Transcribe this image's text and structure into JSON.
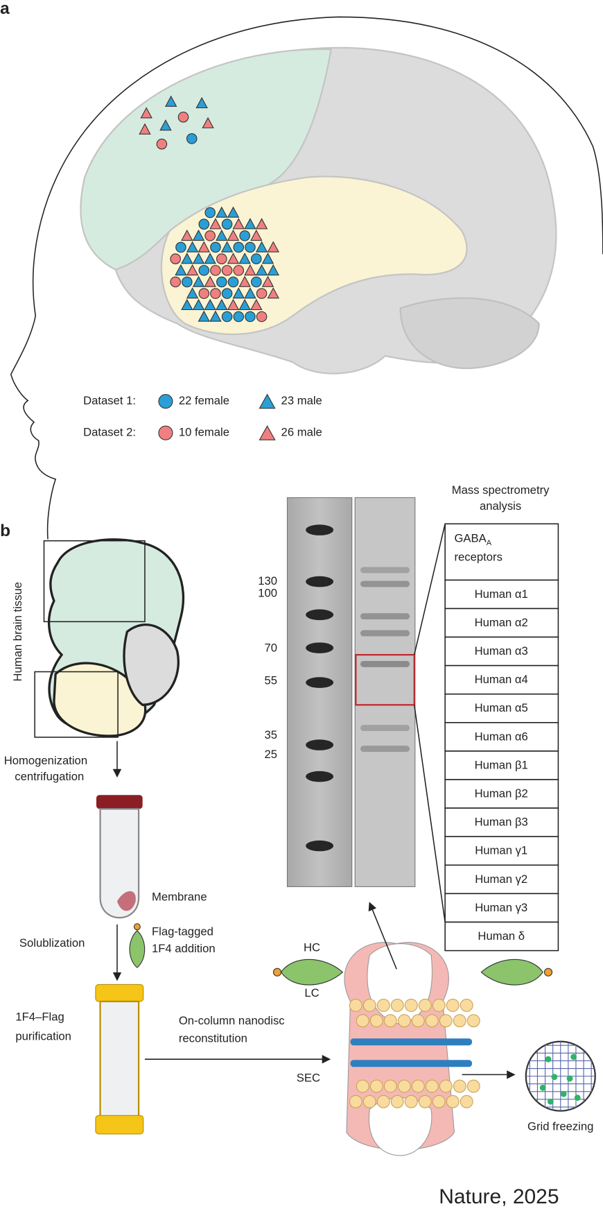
{
  "panel_labels": [
    "a",
    "b"
  ],
  "legend": [
    {
      "dataset": "Dataset 1:",
      "female": "22 female",
      "male": "23 male"
    },
    {
      "dataset": "Dataset 2:",
      "female": "10 female",
      "male": "26 male"
    }
  ],
  "workflow": {
    "tissue": "Human brain tissue",
    "step1": [
      "Homogenization",
      "centrifugation"
    ],
    "membrane": "Membrane",
    "solubilization": "Solublization",
    "antibody": [
      "Flag-tagged",
      "1F4 addition"
    ],
    "purification": [
      "1F4–Flag",
      "purification"
    ],
    "reconstitution": [
      "On-column nanodisc",
      "reconstitution"
    ],
    "sec": "SEC",
    "hc": "HC",
    "lc": "LC",
    "grid": "Grid freezing"
  },
  "gel": {
    "markers": [
      "130",
      "100",
      "70",
      "55",
      "35",
      "25"
    ]
  },
  "mass_spec": {
    "title": [
      "Mass spectrometry",
      "analysis"
    ],
    "header": [
      "GABA",
      "A",
      "receptors"
    ],
    "rows": [
      "Human α1",
      "Human α2",
      "Human α3",
      "Human α4",
      "Human α5",
      "Human α6",
      "Human β1",
      "Human β2",
      "Human β3",
      "Human γ1",
      "Human γ2",
      "Human γ3",
      "Human δ"
    ]
  },
  "citation": "Nature, 2025"
}
